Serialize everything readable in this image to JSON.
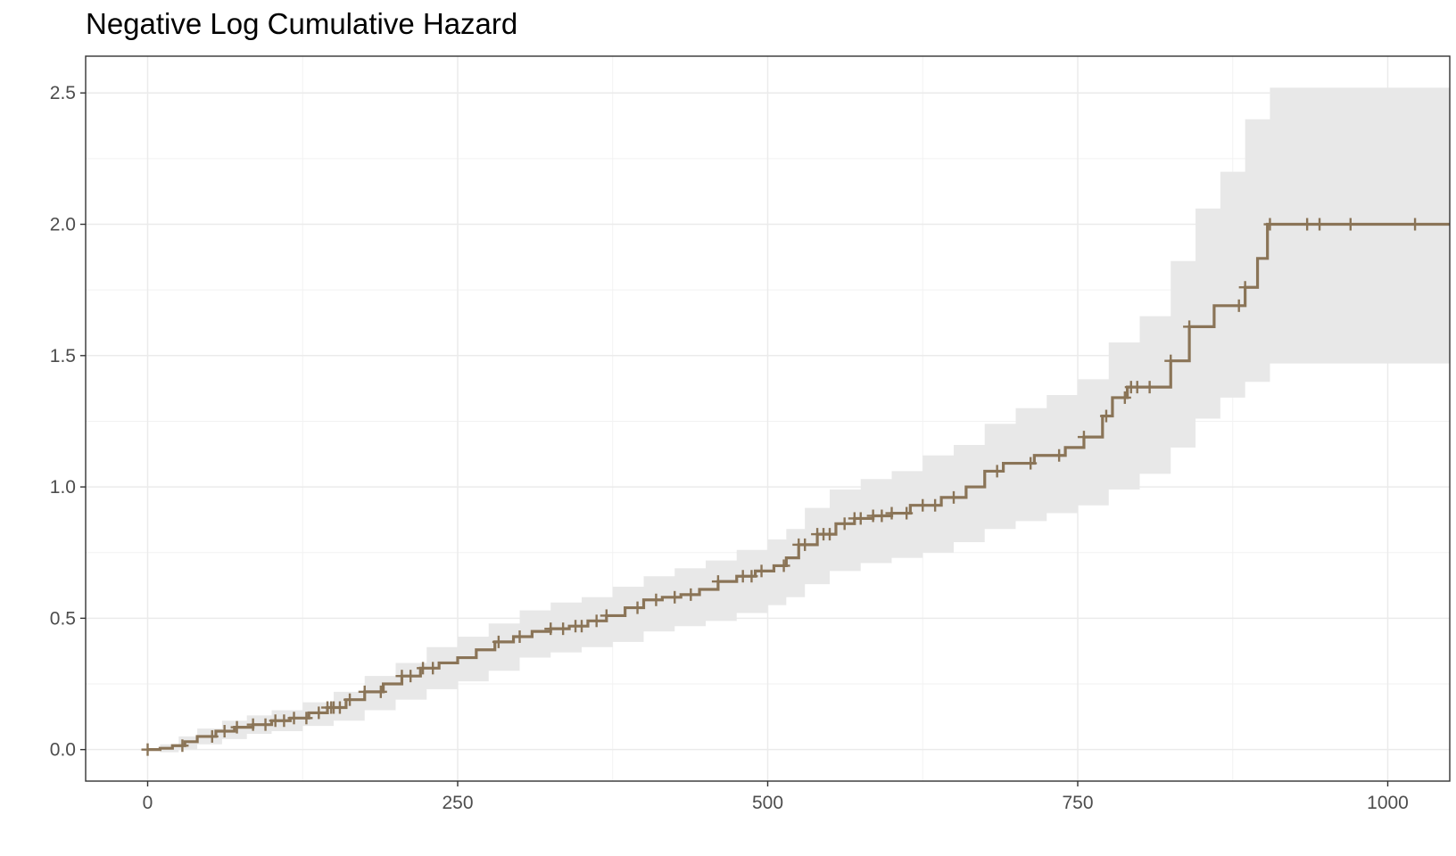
{
  "chart_data": {
    "type": "line",
    "title": "Negative Log Cumulative Hazard",
    "xlabel": "",
    "ylabel": "",
    "xlim": [
      -50,
      1050
    ],
    "ylim": [
      -0.12,
      2.64
    ],
    "x_ticks": [
      0,
      250,
      500,
      750,
      1000
    ],
    "x_tick_labels": [
      "0",
      "250",
      "500",
      "750",
      "1000"
    ],
    "y_ticks": [
      0.0,
      0.5,
      1.0,
      1.5,
      2.0,
      2.5
    ],
    "y_tick_labels": [
      "0.0",
      "0.5",
      "1.0",
      "1.5",
      "2.0",
      "2.5"
    ],
    "grid": true,
    "line_color": "#8a7457",
    "band_color": "#e8e8e8",
    "series": [
      {
        "steps": [
          [
            0,
            0.0
          ],
          [
            10,
            0.005
          ],
          [
            20,
            0.015
          ],
          [
            30,
            0.03
          ],
          [
            40,
            0.05
          ],
          [
            55,
            0.07
          ],
          [
            70,
            0.085
          ],
          [
            85,
            0.095
          ],
          [
            100,
            0.11
          ],
          [
            115,
            0.12
          ],
          [
            130,
            0.14
          ],
          [
            145,
            0.16
          ],
          [
            160,
            0.19
          ],
          [
            175,
            0.22
          ],
          [
            190,
            0.25
          ],
          [
            205,
            0.28
          ],
          [
            220,
            0.31
          ],
          [
            235,
            0.33
          ],
          [
            250,
            0.35
          ],
          [
            265,
            0.38
          ],
          [
            280,
            0.41
          ],
          [
            295,
            0.43
          ],
          [
            310,
            0.45
          ],
          [
            325,
            0.46
          ],
          [
            340,
            0.47
          ],
          [
            355,
            0.49
          ],
          [
            370,
            0.51
          ],
          [
            385,
            0.54
          ],
          [
            400,
            0.57
          ],
          [
            415,
            0.58
          ],
          [
            430,
            0.59
          ],
          [
            445,
            0.61
          ],
          [
            460,
            0.64
          ],
          [
            475,
            0.66
          ],
          [
            490,
            0.68
          ],
          [
            505,
            0.7
          ],
          [
            515,
            0.73
          ],
          [
            525,
            0.78
          ],
          [
            540,
            0.82
          ],
          [
            555,
            0.86
          ],
          [
            570,
            0.88
          ],
          [
            585,
            0.89
          ],
          [
            600,
            0.9
          ],
          [
            615,
            0.93
          ],
          [
            640,
            0.96
          ],
          [
            660,
            1.0
          ],
          [
            675,
            1.06
          ],
          [
            690,
            1.09
          ],
          [
            715,
            1.12
          ],
          [
            740,
            1.15
          ],
          [
            755,
            1.19
          ],
          [
            770,
            1.27
          ],
          [
            778,
            1.34
          ],
          [
            790,
            1.38
          ],
          [
            825,
            1.48
          ],
          [
            840,
            1.61
          ],
          [
            860,
            1.69
          ],
          [
            885,
            1.76
          ],
          [
            895,
            1.87
          ],
          [
            903,
            2.0
          ],
          [
            1050,
            2.0
          ]
        ],
        "band": [
          [
            0,
            -0.005,
            0.005
          ],
          [
            10,
            -0.01,
            0.02
          ],
          [
            25,
            0.0,
            0.05
          ],
          [
            40,
            0.02,
            0.08
          ],
          [
            60,
            0.04,
            0.11
          ],
          [
            80,
            0.06,
            0.13
          ],
          [
            100,
            0.07,
            0.15
          ],
          [
            125,
            0.09,
            0.18
          ],
          [
            150,
            0.11,
            0.22
          ],
          [
            175,
            0.15,
            0.28
          ],
          [
            200,
            0.19,
            0.33
          ],
          [
            225,
            0.23,
            0.39
          ],
          [
            250,
            0.26,
            0.43
          ],
          [
            275,
            0.3,
            0.48
          ],
          [
            300,
            0.35,
            0.53
          ],
          [
            325,
            0.37,
            0.56
          ],
          [
            350,
            0.39,
            0.58
          ],
          [
            375,
            0.41,
            0.62
          ],
          [
            400,
            0.45,
            0.66
          ],
          [
            425,
            0.47,
            0.69
          ],
          [
            450,
            0.49,
            0.72
          ],
          [
            475,
            0.52,
            0.76
          ],
          [
            500,
            0.55,
            0.8
          ],
          [
            515,
            0.58,
            0.84
          ],
          [
            530,
            0.63,
            0.92
          ],
          [
            550,
            0.68,
            0.99
          ],
          [
            575,
            0.71,
            1.03
          ],
          [
            600,
            0.73,
            1.06
          ],
          [
            625,
            0.75,
            1.12
          ],
          [
            650,
            0.79,
            1.16
          ],
          [
            675,
            0.84,
            1.24
          ],
          [
            700,
            0.87,
            1.3
          ],
          [
            725,
            0.9,
            1.35
          ],
          [
            750,
            0.93,
            1.41
          ],
          [
            775,
            0.99,
            1.55
          ],
          [
            800,
            1.05,
            1.65
          ],
          [
            825,
            1.15,
            1.86
          ],
          [
            845,
            1.26,
            2.06
          ],
          [
            865,
            1.34,
            2.2
          ],
          [
            885,
            1.4,
            2.4
          ],
          [
            905,
            1.47,
            2.52
          ],
          [
            1050,
            1.47,
            2.52
          ]
        ],
        "censored": [
          0,
          28,
          52,
          62,
          72,
          85,
          95,
          103,
          110,
          118,
          128,
          138,
          145,
          148,
          150,
          155,
          163,
          175,
          188,
          205,
          212,
          222,
          230,
          283,
          300,
          325,
          335,
          345,
          350,
          362,
          370,
          395,
          410,
          425,
          438,
          460,
          480,
          487,
          495,
          513,
          525,
          530,
          540,
          545,
          550,
          562,
          570,
          575,
          585,
          592,
          600,
          612,
          625,
          635,
          650,
          685,
          712,
          735,
          755,
          773,
          788,
          793,
          798,
          808,
          825,
          840,
          880,
          885,
          905,
          935,
          945,
          970,
          1022
        ]
      }
    ]
  }
}
